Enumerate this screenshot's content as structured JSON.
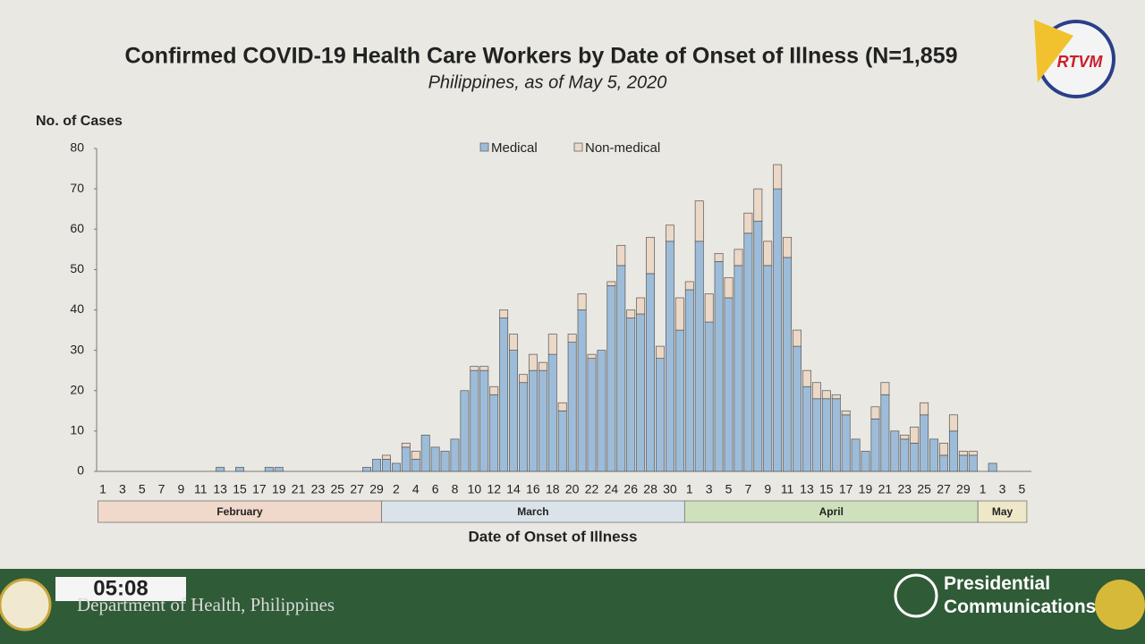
{
  "chart_data": {
    "type": "stacked-bar",
    "title": "Confirmed COVID-19 Health Care Workers by Date of Onset of Illness (N=1,859",
    "subtitle": "Philippines, as of May 5, 2020",
    "y_label": "No. of Cases",
    "x_label": "Date of Onset of Illness",
    "categories": [
      "1",
      null,
      "3",
      null,
      "5",
      null,
      "7",
      null,
      "9",
      null,
      "11",
      null,
      "13",
      null,
      "15",
      null,
      "17",
      null,
      "19",
      null,
      "21",
      null,
      "23",
      null,
      "25",
      null,
      "27",
      null,
      "29",
      null,
      "2",
      null,
      "4",
      null,
      "6",
      null,
      "8",
      null,
      "10",
      null,
      "12",
      null,
      "14",
      null,
      "16",
      null,
      "18",
      null,
      "20",
      null,
      "22",
      null,
      "24",
      null,
      "26",
      null,
      "28",
      null,
      "30",
      null,
      "1",
      null,
      "3",
      null,
      "5",
      null,
      "7",
      null,
      "9",
      null,
      "11",
      null,
      "13",
      null,
      "15",
      null,
      "17",
      null,
      "19",
      null,
      "21",
      null,
      "23",
      null,
      "25",
      null,
      "27",
      null,
      "29",
      null,
      "1",
      null,
      "3",
      null,
      "5"
    ],
    "months": [
      {
        "label": "February",
        "color": "#f0d8cb"
      },
      {
        "label": "March",
        "color": "#dbe3ea"
      },
      {
        "label": "April",
        "color": "#cfe0bd"
      },
      {
        "label": "May",
        "color": "#efe8c8"
      }
    ],
    "series": [
      {
        "name": "Medical",
        "color": "#9dbcd9",
        "values": [
          0,
          0,
          0,
          0,
          0,
          0,
          0,
          0,
          0,
          0,
          0,
          0,
          1,
          0,
          1,
          0,
          0,
          1,
          1,
          0,
          0,
          0,
          0,
          0,
          0,
          0,
          0,
          1,
          3,
          3,
          2,
          6,
          3,
          9,
          6,
          5,
          8,
          20,
          25,
          25,
          19,
          38,
          30,
          22,
          25,
          25,
          29,
          15,
          32,
          40,
          28,
          30,
          46,
          51,
          38,
          39,
          49,
          28,
          57,
          35,
          45,
          57,
          37,
          52,
          43,
          51,
          59,
          62,
          51,
          70,
          53,
          31,
          21,
          18,
          18,
          18,
          14,
          8,
          5,
          13,
          19,
          10,
          8,
          7,
          14,
          8,
          4,
          10,
          4,
          4,
          0,
          2,
          0,
          0,
          0
        ]
      },
      {
        "name": "Non-medical",
        "color": "#ecd8c6",
        "values": [
          0,
          0,
          0,
          0,
          0,
          0,
          0,
          0,
          0,
          0,
          0,
          0,
          0,
          0,
          0,
          0,
          0,
          0,
          0,
          0,
          0,
          0,
          0,
          0,
          0,
          0,
          0,
          0,
          0,
          1,
          0,
          1,
          2,
          0,
          0,
          0,
          0,
          0,
          1,
          1,
          2,
          2,
          4,
          2,
          4,
          2,
          5,
          2,
          2,
          4,
          1,
          0,
          1,
          5,
          2,
          4,
          9,
          3,
          4,
          8,
          2,
          10,
          7,
          2,
          5,
          4,
          5,
          8,
          6,
          6,
          5,
          4,
          4,
          4,
          2,
          1,
          1,
          0,
          0,
          3,
          3,
          0,
          1,
          4,
          3,
          0,
          3,
          4,
          1,
          1,
          0,
          0,
          0,
          0,
          0
        ]
      }
    ],
    "ylim": [
      0,
      80
    ],
    "yticks": [
      0,
      10,
      20,
      30,
      40,
      50,
      60,
      70,
      80
    ],
    "grid": false
  },
  "broadcast": {
    "clock": "05:08",
    "source": "Department of Health, Philippines",
    "network": "Presidential Communications",
    "logo": "RTVM"
  }
}
